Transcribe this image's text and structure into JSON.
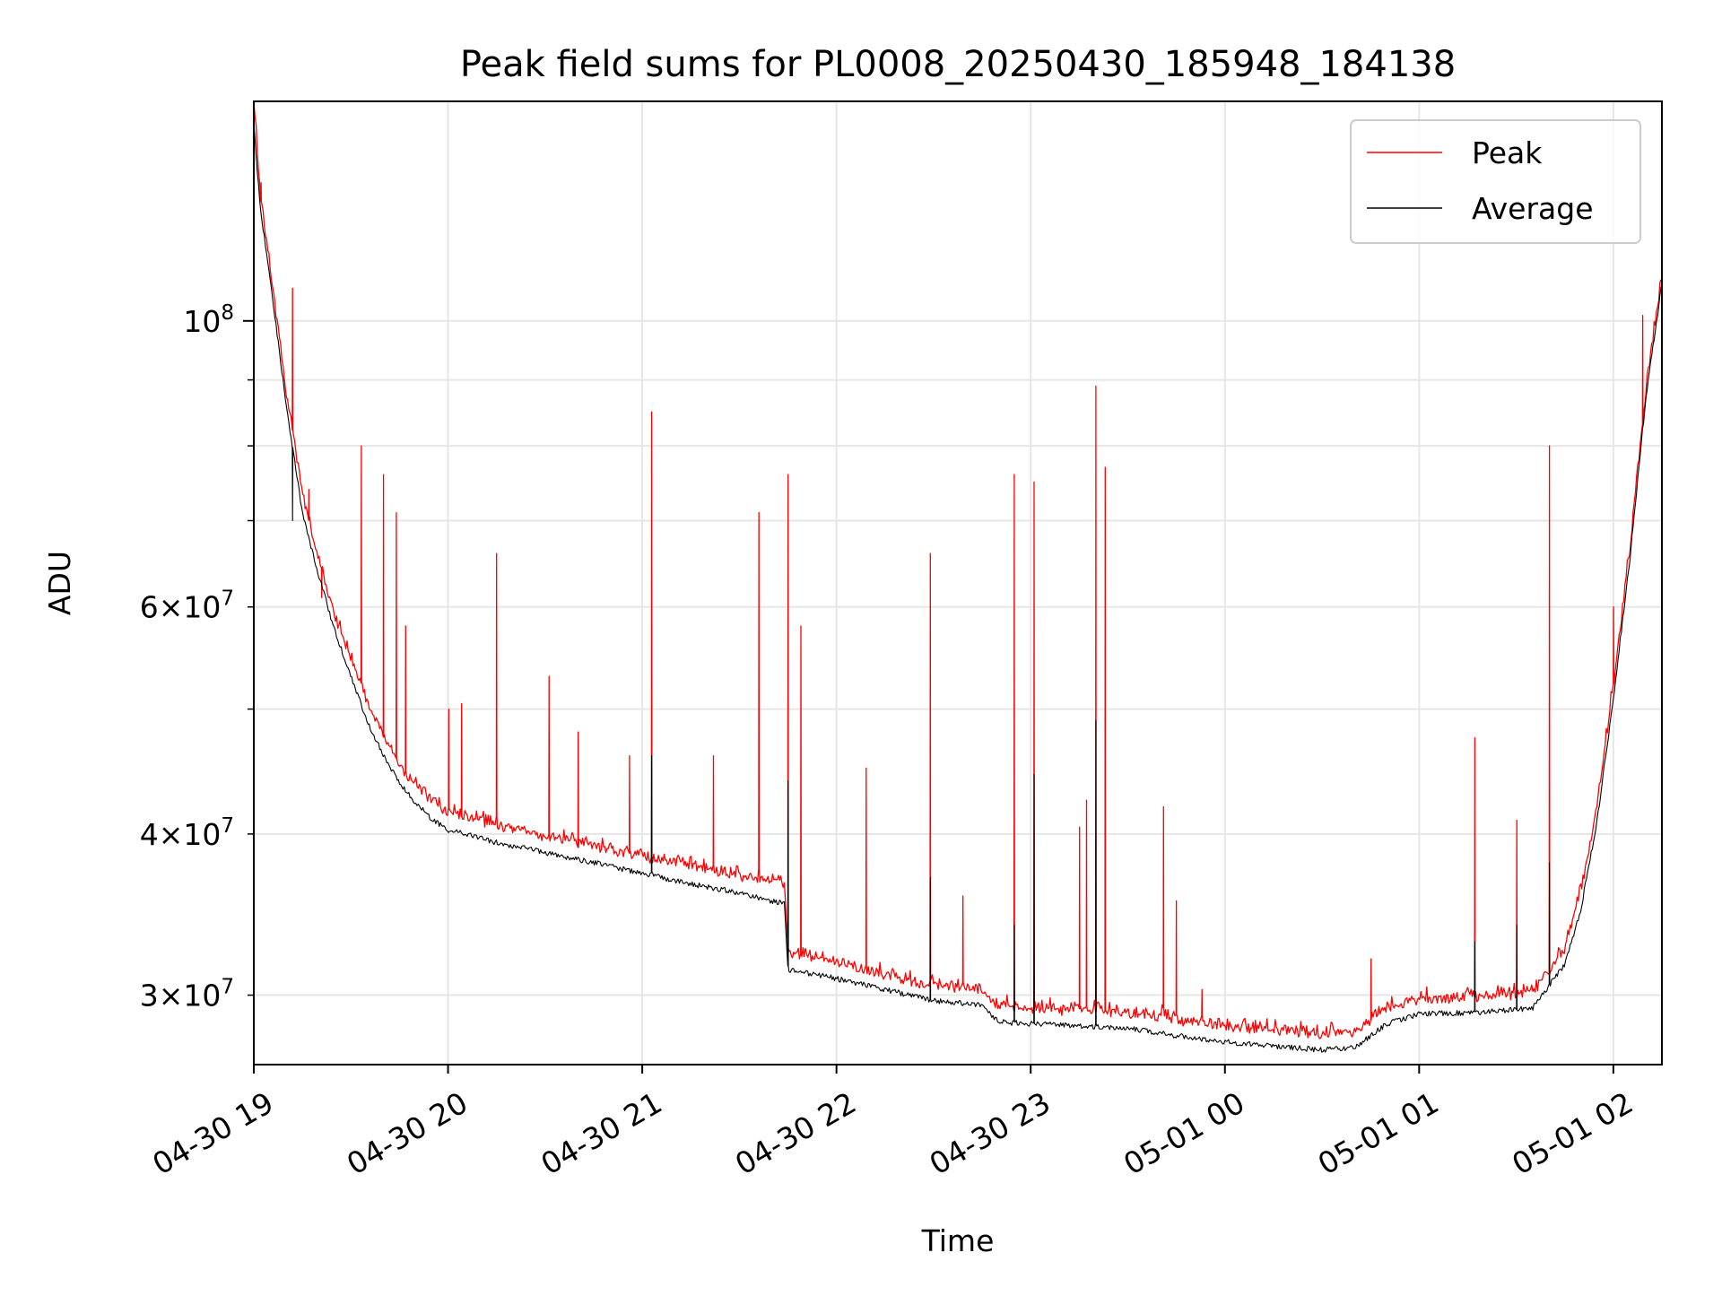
{
  "chart_data": {
    "type": "line",
    "title": "Peak field sums for PL0008_20250430_185948_184138",
    "xlabel": "Time",
    "ylabel": "ADU",
    "x_tick_labels": [
      "04-30 19",
      "04-30 20",
      "04-30 21",
      "04-30 22",
      "04-30 23",
      "05-01 00",
      "05-01 01",
      "05-01 02"
    ],
    "x_ticks": [
      "2025-04-30 19:00",
      "2025-04-30 20:00",
      "2025-04-30 21:00",
      "2025-04-30 22:00",
      "2025-04-30 23:00",
      "2025-05-01 00:00",
      "2025-05-01 01:00",
      "2025-05-01 02:00"
    ],
    "xlim": [
      "2025-04-30 19:00",
      "2025-05-01 02:15"
    ],
    "y_scale": "log",
    "ylim": [
      26500000,
      148000000
    ],
    "y_major_ticks": [
      {
        "value": 100000000,
        "mantissa": "",
        "exponent": "8"
      }
    ],
    "y_minor_ticks": [
      {
        "value": 30000000,
        "mantissa": "3",
        "exponent": "7"
      },
      {
        "value": 40000000,
        "mantissa": "4",
        "exponent": "7"
      },
      {
        "value": 60000000,
        "mantissa": "6",
        "exponent": "7"
      }
    ],
    "y_unlabeled_minor_ticks": [
      50000000,
      70000000,
      80000000,
      90000000
    ],
    "grid": true,
    "legend_position": "top-right",
    "series": [
      {
        "name": "Peak",
        "color": "#ff0000",
        "baseline": [
          [
            "2025-04-30 19:00",
            148000000
          ],
          [
            "2025-04-30 19:02",
            125000000
          ],
          [
            "2025-04-30 19:05",
            110000000
          ],
          [
            "2025-04-30 19:10",
            88000000
          ],
          [
            "2025-04-30 19:15",
            73000000
          ],
          [
            "2025-04-30 19:20",
            65000000
          ],
          [
            "2025-04-30 19:25",
            59000000
          ],
          [
            "2025-04-30 19:30",
            54500000
          ],
          [
            "2025-04-30 19:35",
            50500000
          ],
          [
            "2025-04-30 19:40",
            47500000
          ],
          [
            "2025-04-30 19:45",
            45000000
          ],
          [
            "2025-04-30 19:50",
            43500000
          ],
          [
            "2025-04-30 19:55",
            42300000
          ],
          [
            "2025-04-30 20:00",
            41500000
          ],
          [
            "2025-04-30 20:15",
            40500000
          ],
          [
            "2025-04-30 20:30",
            39700000
          ],
          [
            "2025-04-30 20:45",
            39000000
          ],
          [
            "2025-04-30 21:00",
            38300000
          ],
          [
            "2025-04-30 21:15",
            37700000
          ],
          [
            "2025-04-30 21:30",
            37000000
          ],
          [
            "2025-04-30 21:44",
            36500000
          ],
          [
            "2025-04-30 21:45",
            32200000
          ],
          [
            "2025-04-30 22:00",
            31700000
          ],
          [
            "2025-04-30 22:15",
            31000000
          ],
          [
            "2025-04-30 22:30",
            30400000
          ],
          [
            "2025-04-30 22:45",
            30200000
          ],
          [
            "2025-04-30 22:50",
            29300000
          ],
          [
            "2025-04-30 23:00",
            29200000
          ],
          [
            "2025-04-30 23:30",
            29000000
          ],
          [
            "2025-04-30 23:45",
            28600000
          ],
          [
            "2025-05-01 00:00",
            28300000
          ],
          [
            "2025-05-01 00:15",
            28100000
          ],
          [
            "2025-05-01 00:30",
            27900000
          ],
          [
            "2025-05-01 00:40",
            28000000
          ],
          [
            "2025-05-01 00:50",
            29200000
          ],
          [
            "2025-05-01 01:00",
            29700000
          ],
          [
            "2025-05-01 01:20",
            29800000
          ],
          [
            "2025-05-01 01:35",
            30000000
          ],
          [
            "2025-05-01 01:45",
            32500000
          ],
          [
            "2025-05-01 01:50",
            36000000
          ],
          [
            "2025-05-01 01:55",
            42000000
          ],
          [
            "2025-05-01 02:00",
            52000000
          ],
          [
            "2025-05-01 02:05",
            66000000
          ],
          [
            "2025-05-01 02:10",
            88000000
          ],
          [
            "2025-05-01 02:15",
            108000000
          ]
        ],
        "spikes": [
          [
            "2025-04-30 19:02",
            128000000
          ],
          [
            "2025-04-30 19:12",
            106000000
          ],
          [
            "2025-04-30 19:17",
            74000000
          ],
          [
            "2025-04-30 19:21",
            61000000
          ],
          [
            "2025-04-30 19:33",
            80000000
          ],
          [
            "2025-04-30 19:40",
            76000000
          ],
          [
            "2025-04-30 19:44",
            71000000
          ],
          [
            "2025-04-30 19:47",
            58000000
          ],
          [
            "2025-04-30 20:00",
            50000000
          ],
          [
            "2025-04-30 20:04",
            50500000
          ],
          [
            "2025-04-30 20:15",
            66000000
          ],
          [
            "2025-04-30 20:31",
            53000000
          ],
          [
            "2025-04-30 20:40",
            48000000
          ],
          [
            "2025-04-30 20:56",
            46000000
          ],
          [
            "2025-04-30 21:03",
            85000000
          ],
          [
            "2025-04-30 21:22",
            46000000
          ],
          [
            "2025-04-30 21:36",
            71000000
          ],
          [
            "2025-04-30 21:45",
            76000000
          ],
          [
            "2025-04-30 21:49",
            58000000
          ],
          [
            "2025-04-30 22:09",
            45000000
          ],
          [
            "2025-04-30 22:29",
            66000000
          ],
          [
            "2025-04-30 22:39",
            35800000
          ],
          [
            "2025-04-30 22:55",
            76000000
          ],
          [
            "2025-04-30 23:01",
            75000000
          ],
          [
            "2025-04-30 23:15",
            40500000
          ],
          [
            "2025-04-30 23:17",
            42500000
          ],
          [
            "2025-04-30 23:20",
            89000000
          ],
          [
            "2025-04-30 23:23",
            77000000
          ],
          [
            "2025-04-30 23:41",
            42000000
          ],
          [
            "2025-04-30 23:45",
            35500000
          ],
          [
            "2025-04-30 23:53",
            30300000
          ],
          [
            "2025-05-01 00:45",
            32000000
          ],
          [
            "2025-05-01 01:17",
            47500000
          ],
          [
            "2025-05-01 01:30",
            41000000
          ],
          [
            "2025-05-01 01:40",
            80000000
          ],
          [
            "2025-05-01 02:00",
            60000000
          ],
          [
            "2025-05-01 02:09",
            101000000
          ]
        ]
      },
      {
        "name": "Average",
        "color": "#000000",
        "baseline": [
          [
            "2025-04-30 19:00",
            142000000
          ],
          [
            "2025-04-30 19:02",
            122000000
          ],
          [
            "2025-04-30 19:05",
            108000000
          ],
          [
            "2025-04-30 19:10",
            86000000
          ],
          [
            "2025-04-30 19:15",
            71000000
          ],
          [
            "2025-04-30 19:20",
            63500000
          ],
          [
            "2025-04-30 19:25",
            57500000
          ],
          [
            "2025-04-30 19:30",
            53000000
          ],
          [
            "2025-04-30 19:35",
            49000000
          ],
          [
            "2025-04-30 19:40",
            46000000
          ],
          [
            "2025-04-30 19:45",
            43800000
          ],
          [
            "2025-04-30 19:50",
            42300000
          ],
          [
            "2025-04-30 19:55",
            41100000
          ],
          [
            "2025-04-30 20:00",
            40300000
          ],
          [
            "2025-04-30 20:15",
            39400000
          ],
          [
            "2025-04-30 20:30",
            38700000
          ],
          [
            "2025-04-30 20:45",
            38000000
          ],
          [
            "2025-04-30 21:00",
            37300000
          ],
          [
            "2025-04-30 21:15",
            36600000
          ],
          [
            "2025-04-30 21:30",
            36000000
          ],
          [
            "2025-04-30 21:44",
            35300000
          ],
          [
            "2025-04-30 21:45",
            31400000
          ],
          [
            "2025-04-30 22:00",
            30900000
          ],
          [
            "2025-04-30 22:15",
            30300000
          ],
          [
            "2025-04-30 22:30",
            29700000
          ],
          [
            "2025-04-30 22:45",
            29500000
          ],
          [
            "2025-04-30 22:50",
            28600000
          ],
          [
            "2025-04-30 23:00",
            28500000
          ],
          [
            "2025-04-30 23:30",
            28300000
          ],
          [
            "2025-04-30 23:45",
            27900000
          ],
          [
            "2025-05-01 00:00",
            27600000
          ],
          [
            "2025-05-01 00:15",
            27400000
          ],
          [
            "2025-05-01 00:30",
            27200000
          ],
          [
            "2025-05-01 00:40",
            27300000
          ],
          [
            "2025-05-01 00:50",
            28500000
          ],
          [
            "2025-05-01 01:00",
            29000000
          ],
          [
            "2025-05-01 01:20",
            29100000
          ],
          [
            "2025-05-01 01:35",
            29300000
          ],
          [
            "2025-05-01 01:45",
            31700000
          ],
          [
            "2025-05-01 01:50",
            35000000
          ],
          [
            "2025-05-01 01:55",
            41000000
          ],
          [
            "2025-05-01 02:00",
            51000000
          ],
          [
            "2025-05-01 02:05",
            65000000
          ],
          [
            "2025-05-01 02:10",
            87000000
          ],
          [
            "2025-05-01 02:15",
            107000000
          ]
        ],
        "spikes": [
          [
            "2025-04-30 19:12",
            70000000
          ],
          [
            "2025-04-30 21:03",
            46000000
          ],
          [
            "2025-04-30 21:45",
            44000000
          ],
          [
            "2025-04-30 22:29",
            37000000
          ],
          [
            "2025-04-30 22:55",
            34000000
          ],
          [
            "2025-04-30 23:01",
            44500000
          ],
          [
            "2025-04-30 23:20",
            49000000
          ],
          [
            "2025-05-01 01:17",
            33000000
          ],
          [
            "2025-05-01 01:30",
            34000000
          ],
          [
            "2025-05-01 01:40",
            38000000
          ]
        ]
      }
    ]
  }
}
